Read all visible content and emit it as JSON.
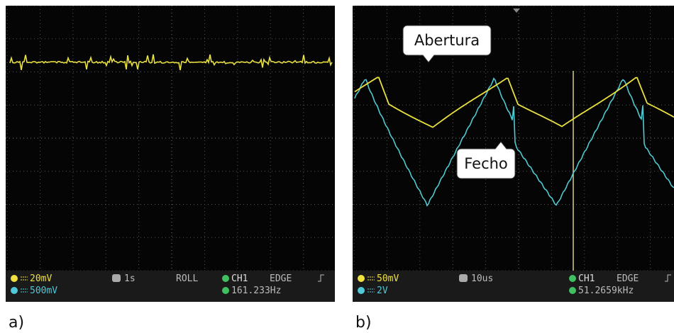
{
  "panels": [
    {
      "label": "a)",
      "status": {
        "ch1_scale": "20mV",
        "ch2_scale": "500mV",
        "timebase": "1s",
        "mode": "ROLL",
        "trigger_source": "CH1",
        "trigger_type": "EDGE",
        "frequency": "161.233Hz"
      }
    },
    {
      "label": "b)",
      "status": {
        "ch1_scale": "50mV",
        "ch2_scale": "2V",
        "timebase": "10us",
        "trigger_source": "CH1",
        "trigger_type": "EDGE",
        "frequency": "51.2659kHz"
      },
      "callouts": [
        "Abertura",
        "Fecho"
      ]
    }
  ]
}
